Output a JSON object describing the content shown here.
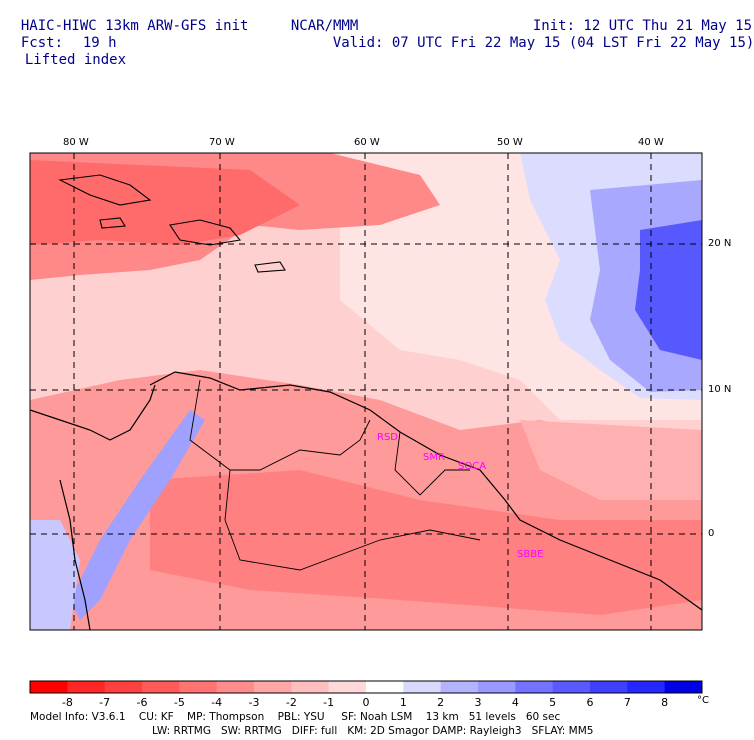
{
  "header": {
    "model": "HAIC-HIWC 13km ARW-GFS init",
    "org": "NCAR/MMM",
    "init": "Init: 12 UTC Thu 21 May 15",
    "fcst_label": "Fcst:",
    "fcst_value": "19 h",
    "valid": "Valid: 07 UTC Fri 22 May 15 (04 LST Fri 22 May 15)",
    "field": "Lifted index"
  },
  "map": {
    "lon_labels": [
      "80 W",
      "70 W",
      "60 W",
      "50 W",
      "40 W"
    ],
    "lat_labels": [
      "20 N",
      "10 N",
      "0"
    ],
    "station_labels": [
      "RSD",
      "SMR",
      "SOCA",
      "SBBE"
    ]
  },
  "colorbar": {
    "ticks": [
      "-8",
      "-7",
      "-6",
      "-5",
      "-4",
      "-3",
      "-2",
      "-1",
      "0",
      "1",
      "2",
      "3",
      "4",
      "5",
      "6",
      "7",
      "8"
    ],
    "unit": "°C",
    "colors": [
      "#ff0000",
      "#ff2626",
      "#ff4040",
      "#ff5959",
      "#ff7373",
      "#ff8c8c",
      "#ffa6a6",
      "#ffbfbf",
      "#ffd9d9",
      "#ffffff",
      "#d9d9ff",
      "#b3b3ff",
      "#9999ff",
      "#7373ff",
      "#5959ff",
      "#4040ff",
      "#2626ff",
      "#0000e6"
    ]
  },
  "footer": {
    "line1": "Model Info: V3.6.1    CU: KF    MP: Thompson    PBL: YSU     SF: Noah LSM    13 km   51 levels   60 sec",
    "line2": "LW: RRTMG   SW: RRTMG   DIFF: full   KM: 2D Smagor DAMP: Rayleigh3   SFLAY: MM5"
  }
}
